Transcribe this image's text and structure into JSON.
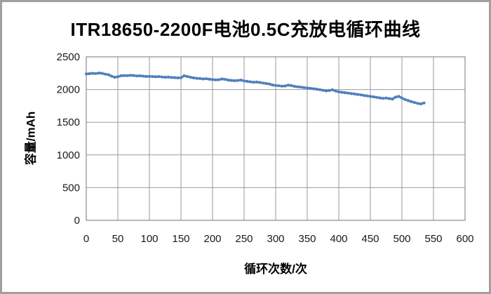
{
  "window": {
    "background": "#ffffff",
    "frame_color": "#a0a0a0"
  },
  "colors": {
    "series_blue": "#4F81BD",
    "gridline": "#9a9a9a",
    "plot_border": "#8c8c8c",
    "tick_text": "#1a1a1a",
    "title_text": "#000000"
  },
  "chart_data": {
    "type": "scatter",
    "title": "ITR18650-2200F电池0.5C充放电循环曲线",
    "xlabel": "循环次数/次",
    "ylabel": "容量/mAh",
    "xlim": [
      0,
      600
    ],
    "ylim": [
      0,
      2500
    ],
    "x_ticks": [
      0,
      50,
      100,
      150,
      200,
      250,
      300,
      350,
      400,
      450,
      500,
      550,
      600
    ],
    "y_ticks": [
      0,
      500,
      1000,
      1500,
      2000,
      2500
    ],
    "grid": true,
    "legend_position": "none",
    "series": [
      {
        "name": "capacity",
        "color": "#4F81BD",
        "x": [
          0,
          5,
          10,
          15,
          20,
          25,
          30,
          35,
          40,
          45,
          50,
          55,
          60,
          65,
          70,
          75,
          80,
          85,
          90,
          95,
          100,
          105,
          110,
          115,
          120,
          125,
          130,
          135,
          140,
          145,
          150,
          155,
          160,
          165,
          170,
          175,
          180,
          185,
          190,
          195,
          200,
          205,
          210,
          215,
          220,
          225,
          230,
          235,
          240,
          245,
          250,
          255,
          260,
          265,
          270,
          275,
          280,
          285,
          290,
          295,
          300,
          305,
          310,
          315,
          320,
          325,
          330,
          335,
          340,
          345,
          350,
          355,
          360,
          365,
          370,
          375,
          380,
          385,
          390,
          395,
          400,
          405,
          410,
          415,
          420,
          425,
          430,
          435,
          440,
          445,
          450,
          455,
          460,
          465,
          470,
          475,
          480,
          485,
          490,
          495,
          500,
          505,
          510,
          515,
          520,
          525,
          530,
          535
        ],
        "y": [
          2238,
          2242,
          2248,
          2245,
          2252,
          2248,
          2235,
          2228,
          2205,
          2188,
          2195,
          2210,
          2215,
          2212,
          2218,
          2215,
          2208,
          2210,
          2205,
          2200,
          2202,
          2198,
          2195,
          2198,
          2192,
          2188,
          2190,
          2185,
          2182,
          2178,
          2180,
          2210,
          2200,
          2188,
          2178,
          2172,
          2168,
          2162,
          2165,
          2158,
          2152,
          2148,
          2150,
          2162,
          2155,
          2145,
          2140,
          2135,
          2138,
          2145,
          2132,
          2125,
          2118,
          2112,
          2115,
          2108,
          2100,
          2092,
          2085,
          2070,
          2062,
          2058,
          2052,
          2055,
          2068,
          2060,
          2048,
          2042,
          2036,
          2030,
          2025,
          2018,
          2012,
          2005,
          1998,
          1988,
          1980,
          1986,
          1996,
          1978,
          1965,
          1958,
          1952,
          1945,
          1938,
          1932,
          1925,
          1918,
          1910,
          1902,
          1895,
          1888,
          1880,
          1872,
          1865,
          1870,
          1862,
          1855,
          1885,
          1895,
          1870,
          1848,
          1830,
          1815,
          1802,
          1788,
          1780,
          1795
        ]
      }
    ]
  }
}
